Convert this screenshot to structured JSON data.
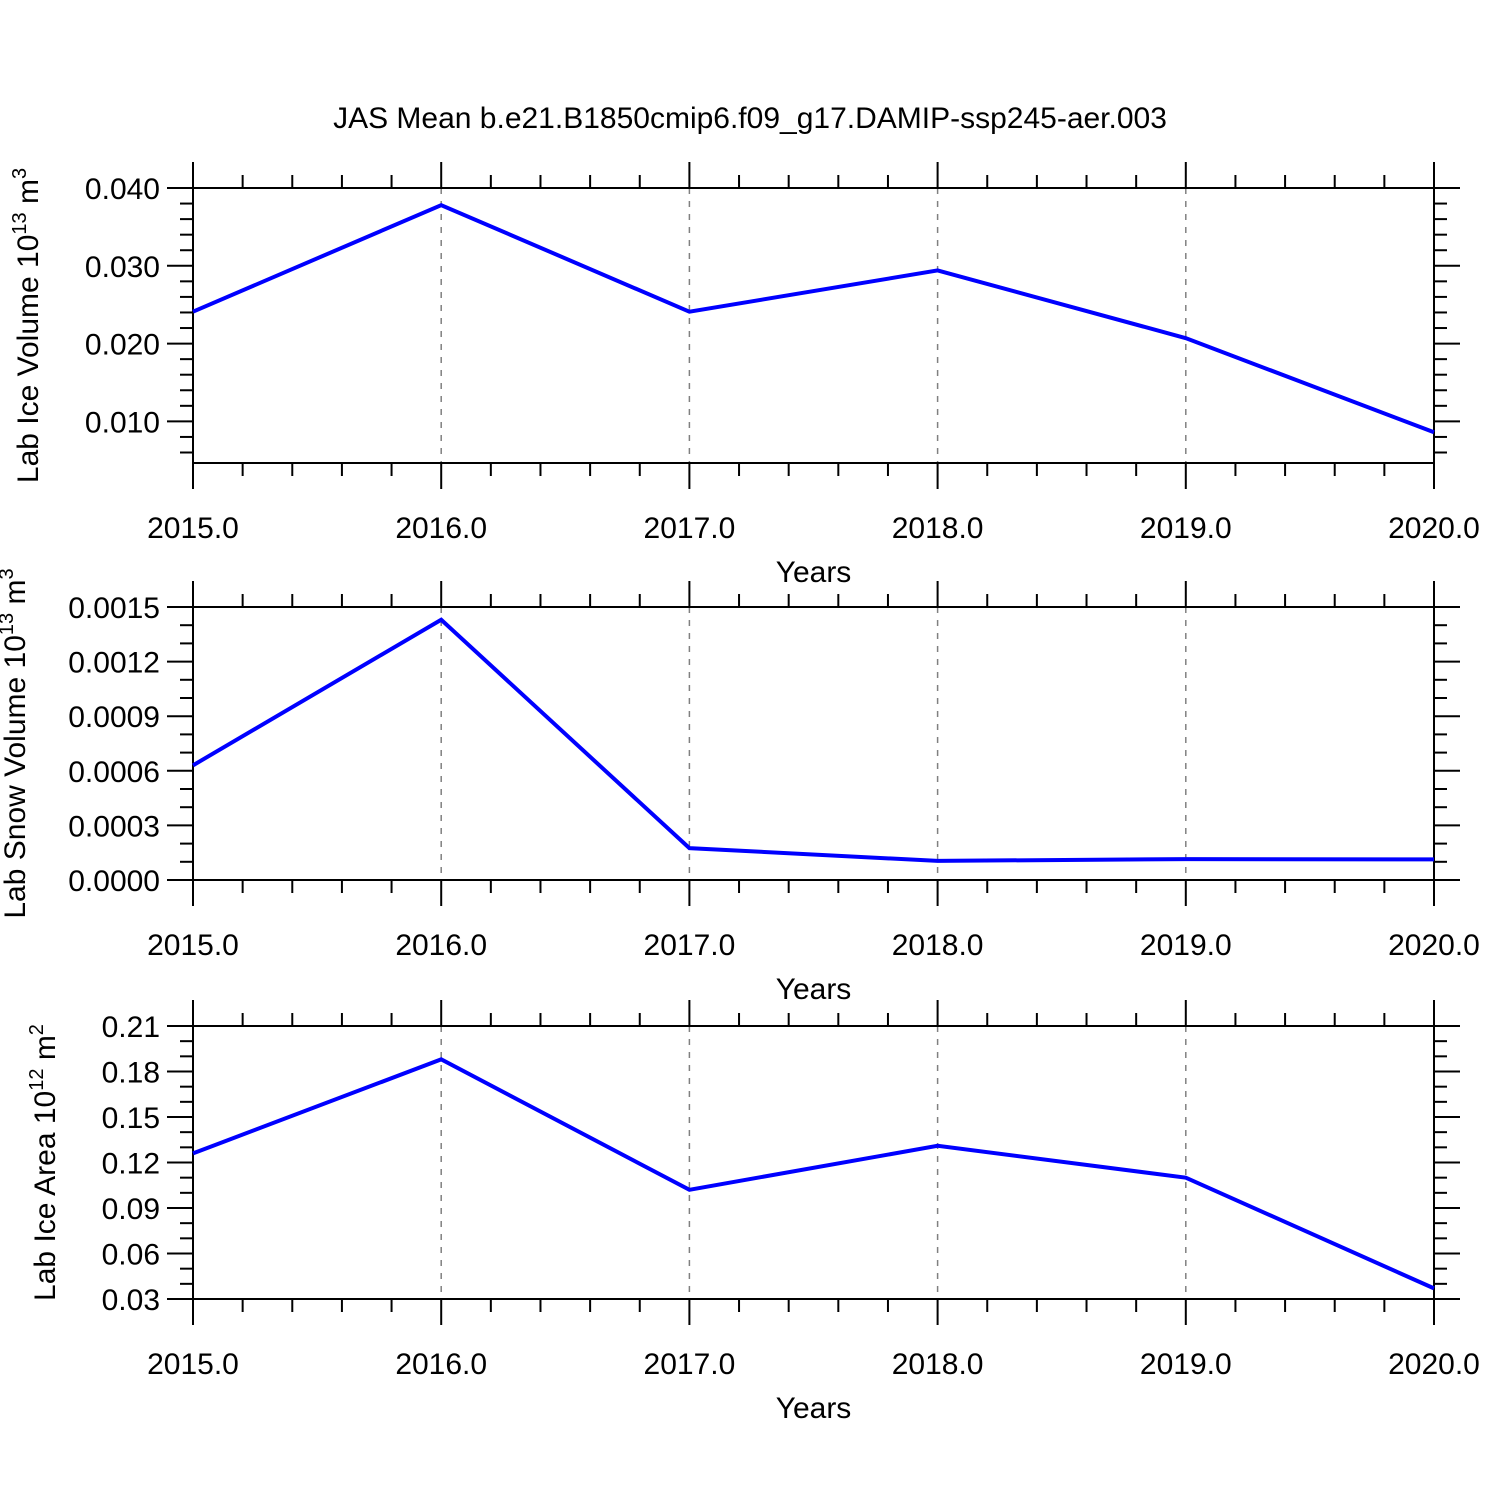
{
  "title": "JAS Mean b.e21.B1850cmip6.f09_g17.DAMIP-ssp245-aer.003",
  "colors": {
    "line": "#0000ff",
    "frame": "#000000",
    "grid": "#808080",
    "background": "#ffffff"
  },
  "chart_data": [
    {
      "type": "line",
      "name": "lab-ice-volume",
      "ylabel": "Lab Ice Volume 10^13^ m^3^",
      "xlabel": "Years",
      "x": [
        2015,
        2016,
        2017,
        2018,
        2019,
        2020
      ],
      "y": [
        0.0241,
        0.0378,
        0.0241,
        0.0294,
        0.0207,
        0.0086
      ],
      "xlim": [
        2015,
        2020
      ],
      "ylim": [
        0.00465,
        0.04
      ],
      "xticks": [
        2015,
        2016,
        2017,
        2018,
        2019,
        2020
      ],
      "xtick_labels": [
        "2015.0",
        "2016.0",
        "2017.0",
        "2018.0",
        "2019.0",
        "2020.0"
      ],
      "x_minor_step": 0.2,
      "yticks": [
        0.01,
        0.02,
        0.03,
        0.04
      ],
      "ytick_labels": [
        "0.010",
        "0.020",
        "0.030",
        "0.040"
      ],
      "y_minor_step": 0.002,
      "grid_x": [
        2016,
        2017,
        2018,
        2019
      ],
      "grid_on": true,
      "legend": "none",
      "line_color": "#0000ff"
    },
    {
      "type": "line",
      "name": "lab-snow-volume",
      "ylabel": "Lab Snow Volume 10^13^ m^3^",
      "xlabel": "Years",
      "x": [
        2015,
        2016,
        2017,
        2018,
        2019,
        2020
      ],
      "y": [
        0.00063,
        0.00143,
        0.000175,
        0.000105,
        0.000115,
        0.000113
      ],
      "xlim": [
        2015,
        2020
      ],
      "ylim": [
        0.0,
        0.0015
      ],
      "xticks": [
        2015,
        2016,
        2017,
        2018,
        2019,
        2020
      ],
      "xtick_labels": [
        "2015.0",
        "2016.0",
        "2017.0",
        "2018.0",
        "2019.0",
        "2020.0"
      ],
      "x_minor_step": 0.2,
      "yticks": [
        0.0,
        0.0003,
        0.0006,
        0.0009,
        0.0012,
        0.0015
      ],
      "ytick_labels": [
        "0.0000",
        "0.0003",
        "0.0006",
        "0.0009",
        "0.0012",
        "0.0015"
      ],
      "y_minor_step": 0.0001,
      "grid_x": [
        2016,
        2017,
        2018,
        2019
      ],
      "grid_on": true,
      "legend": "none",
      "line_color": "#0000ff"
    },
    {
      "type": "line",
      "name": "lab-ice-area",
      "ylabel": "Lab Ice Area 10^12^ m^2^",
      "xlabel": "Years",
      "x": [
        2015,
        2016,
        2017,
        2018,
        2019,
        2020
      ],
      "y": [
        0.126,
        0.188,
        0.102,
        0.131,
        0.11,
        0.037
      ],
      "xlim": [
        2015,
        2020
      ],
      "ylim": [
        0.03,
        0.21
      ],
      "xticks": [
        2015,
        2016,
        2017,
        2018,
        2019,
        2020
      ],
      "xtick_labels": [
        "2015.0",
        "2016.0",
        "2017.0",
        "2018.0",
        "2019.0",
        "2020.0"
      ],
      "x_minor_step": 0.2,
      "yticks": [
        0.03,
        0.06,
        0.09,
        0.12,
        0.15,
        0.18,
        0.21
      ],
      "ytick_labels": [
        "0.03",
        "0.06",
        "0.09",
        "0.12",
        "0.15",
        "0.18",
        "0.21"
      ],
      "y_minor_step": 0.01,
      "grid_x": [
        2016,
        2017,
        2018,
        2019
      ],
      "grid_on": true,
      "legend": "none",
      "line_color": "#0000ff"
    }
  ]
}
